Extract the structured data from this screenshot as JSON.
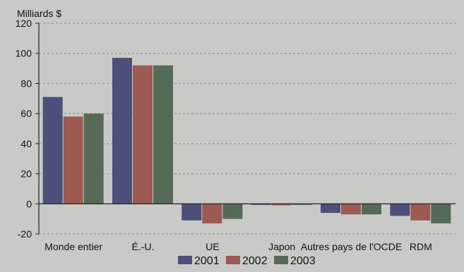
{
  "chart_data": {
    "type": "bar",
    "unit_label": "Milliards $",
    "categories": [
      "Monde entier",
      "É.-U.",
      "UE",
      "Japon",
      "Autres pays de l'OCDE",
      "RDM"
    ],
    "series": [
      {
        "name": "2001",
        "color": "#4b4f7a",
        "values": [
          71,
          97,
          -11,
          -0.3,
          -6,
          -8
        ]
      },
      {
        "name": "2002",
        "color": "#9c5a52",
        "values": [
          58,
          92,
          -13,
          -1,
          -7,
          -11
        ]
      },
      {
        "name": "2003",
        "color": "#566a58",
        "values": [
          60,
          92,
          -10,
          -0.5,
          -7,
          -13
        ]
      }
    ],
    "ylim": [
      -20,
      120
    ],
    "yticks": [
      -20,
      0,
      20,
      40,
      60,
      80,
      100,
      120
    ],
    "ytick_labels": [
      "-20",
      "0",
      "20",
      "40",
      "60",
      "80",
      "100",
      "120"
    ],
    "grid": true,
    "legend_position": "bottom-center"
  }
}
